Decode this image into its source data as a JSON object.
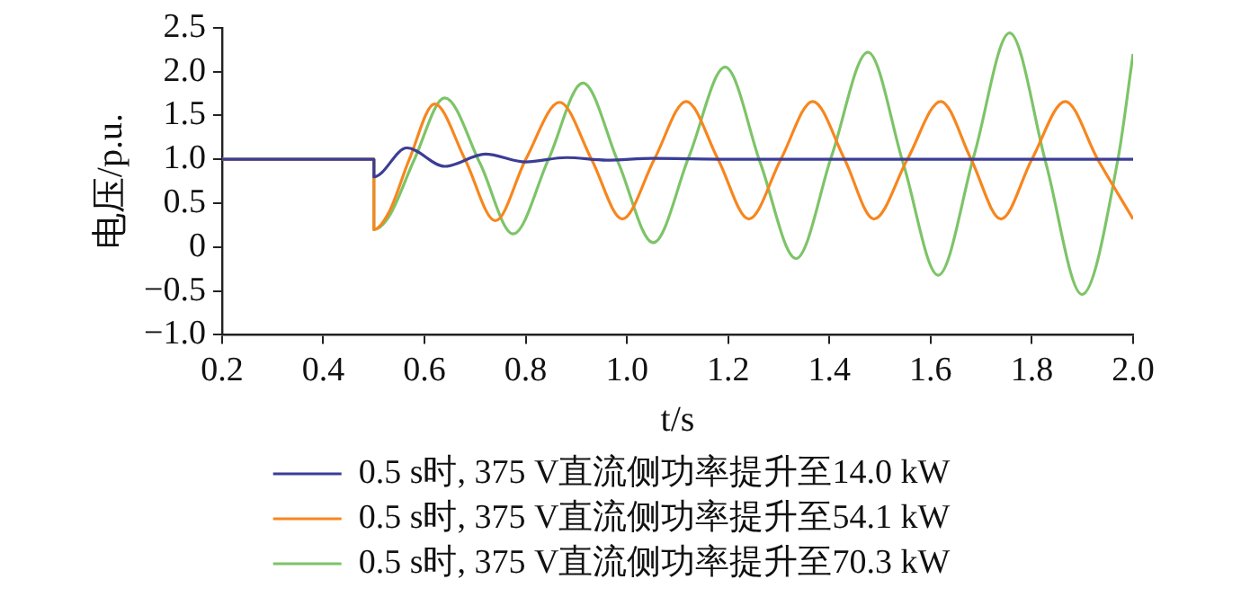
{
  "chart_data": {
    "type": "line",
    "xlabel": "t/s",
    "ylabel": "电压/p.u.",
    "xlim": [
      0.2,
      2.0
    ],
    "xticks": [
      {
        "value": 0.2,
        "label": "0.2"
      },
      {
        "value": 0.4,
        "label": "0.4"
      },
      {
        "value": 0.6,
        "label": "0.6"
      },
      {
        "value": 0.8,
        "label": "0.8"
      },
      {
        "value": 1.0,
        "label": "1.0"
      },
      {
        "value": 1.2,
        "label": "1.2"
      },
      {
        "value": 1.4,
        "label": "1.4"
      },
      {
        "value": 1.6,
        "label": "1.6"
      },
      {
        "value": 1.8,
        "label": "1.8"
      },
      {
        "value": 2.0,
        "label": "2.0"
      }
    ],
    "ylim": [
      -1.0,
      2.5
    ],
    "yticks": [
      {
        "value": -1.0,
        "label": "−1.0"
      },
      {
        "value": -0.5,
        "label": "−0.5"
      },
      0,
      {
        "value": 0.5,
        "label": "0.5"
      },
      {
        "value": 1.0,
        "label": "1.0"
      },
      {
        "value": 1.5,
        "label": "1.5"
      },
      {
        "value": 2.0,
        "label": "2.0"
      },
      {
        "value": 2.5,
        "label": "2.5"
      }
    ],
    "grid": false,
    "legend": "bottom",
    "marker": "none",
    "line_style": "solid",
    "series": [
      {
        "name": "0.5 s时, 375 V直流侧功率提升至14.0 kW",
        "color": "#3b3d96",
        "x": [
          0.2,
          0.5,
          0.5,
          0.565,
          0.64,
          0.72,
          0.8,
          0.88,
          0.96,
          1.05,
          1.2,
          2.0
        ],
        "values": [
          1.0,
          1.0,
          0.8,
          1.13,
          0.92,
          1.06,
          0.97,
          1.02,
          0.99,
          1.01,
          1.0,
          1.0
        ]
      },
      {
        "name": "0.5 s时, 375 V直流侧功率提升至54.1 kW",
        "color": "#f7861e",
        "x": [
          0.2,
          0.5,
          0.5,
          0.53,
          0.57,
          0.62,
          0.68,
          0.74,
          0.8,
          0.867,
          0.93,
          0.991,
          1.054,
          1.117,
          1.18,
          1.241,
          1.304,
          1.367,
          1.43,
          1.488,
          1.554,
          1.62,
          1.68,
          1.739,
          1.8,
          1.866,
          1.93,
          2.0
        ],
        "values": [
          1.0,
          1.0,
          0.2,
          0.4,
          1.0,
          1.63,
          1.0,
          0.3,
          1.0,
          1.65,
          1.0,
          0.32,
          1.0,
          1.66,
          1.0,
          0.32,
          1.0,
          1.66,
          1.0,
          0.32,
          1.0,
          1.66,
          1.0,
          0.32,
          1.0,
          1.66,
          1.0,
          0.32
        ]
      },
      {
        "name": "0.5 s时, 375 V直流侧功率提升至70.3 kW",
        "color": "#7dc468",
        "x": [
          0.2,
          0.5,
          0.5,
          0.53,
          0.58,
          0.64,
          0.71,
          0.775,
          0.845,
          0.913,
          0.983,
          1.052,
          1.123,
          1.194,
          1.264,
          1.334,
          1.405,
          1.476,
          1.546,
          1.615,
          1.686,
          1.756,
          1.828,
          1.899,
          1.97,
          2.0
        ],
        "values": [
          1.0,
          1.0,
          0.2,
          0.35,
          1.0,
          1.7,
          0.95,
          0.15,
          1.0,
          1.87,
          0.96,
          0.05,
          1.04,
          2.05,
          0.95,
          -0.13,
          1.05,
          2.22,
          0.95,
          -0.32,
          1.05,
          2.44,
          0.95,
          -0.54,
          1.0,
          2.2
        ]
      }
    ]
  }
}
